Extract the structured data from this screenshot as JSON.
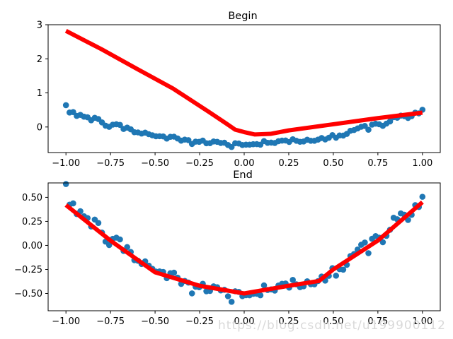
{
  "chart_data": [
    {
      "type": "scatter",
      "title": "Begin",
      "xlabel": "",
      "ylabel": "",
      "xlim": [
        -1.1,
        1.1
      ],
      "ylim": [
        -0.75,
        3.0
      ],
      "x_ticks": [
        -1.0,
        -0.75,
        -0.5,
        -0.25,
        0.0,
        0.25,
        0.5,
        0.75,
        1.0
      ],
      "x_tick_labels": [
        "−1.00",
        "−0.75",
        "−0.50",
        "−0.25",
        "0.00",
        "0.25",
        "0.50",
        "0.75",
        "1.00"
      ],
      "y_ticks": [
        0,
        1,
        2,
        3
      ],
      "y_tick_labels": [
        "0",
        "1",
        "2",
        "3"
      ],
      "scatter_color": "#1f77b4",
      "scatter_function": "y = x^2 - 0.5 + noise(sd 0.05), 100 points from -1 to 1",
      "line": {
        "color": "#ff0000",
        "x": [
          -1.0,
          -0.8,
          -0.6,
          -0.4,
          -0.2,
          -0.1,
          -0.05,
          0.0,
          0.06,
          0.15,
          0.25,
          0.5,
          0.75,
          1.0
        ],
        "y": [
          2.82,
          2.28,
          1.7,
          1.13,
          0.45,
          0.1,
          -0.08,
          -0.15,
          -0.22,
          -0.2,
          -0.1,
          0.08,
          0.26,
          0.42
        ]
      }
    },
    {
      "type": "scatter",
      "title": "End",
      "xlabel": "",
      "ylabel": "",
      "xlim": [
        -1.1,
        1.1
      ],
      "ylim": [
        -0.68,
        0.65
      ],
      "x_ticks": [
        -1.0,
        -0.75,
        -0.5,
        -0.25,
        0.0,
        0.25,
        0.5,
        0.75,
        1.0
      ],
      "x_tick_labels": [
        "−1.00",
        "−0.75",
        "−0.50",
        "−0.25",
        "0.00",
        "0.25",
        "0.50",
        "0.75",
        "1.00"
      ],
      "y_ticks": [
        -0.5,
        -0.25,
        0.0,
        0.25,
        0.5
      ],
      "y_tick_labels": [
        "−0.50",
        "−0.25",
        "0.00",
        "0.25",
        "0.50"
      ],
      "scatter_color": "#1f77b4",
      "scatter_function": "y = x^2 - 0.5 + noise(sd 0.05), 100 points from -1 to 1",
      "line": {
        "color": "#ff0000",
        "x": [
          -1.0,
          -0.75,
          -0.5,
          -0.25,
          0.0,
          0.25,
          0.42,
          0.5,
          0.75,
          1.0
        ],
        "y": [
          0.42,
          0.05,
          -0.28,
          -0.42,
          -0.5,
          -0.42,
          -0.37,
          -0.25,
          0.05,
          0.45
        ]
      }
    }
  ],
  "watermark": "https://blog.csdn.net/u199900112"
}
